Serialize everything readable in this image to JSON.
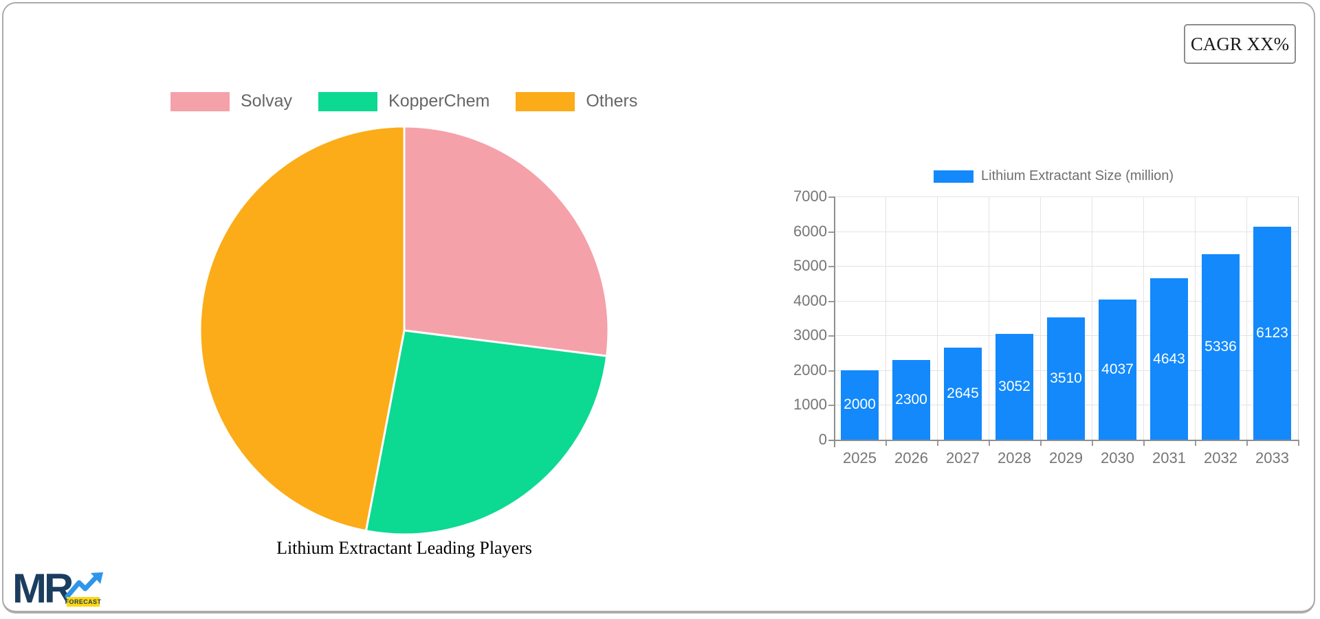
{
  "cagr": {
    "label": "CAGR XX%"
  },
  "logo": {
    "brand": "MR",
    "badge": "FORECAST"
  },
  "chart_data": [
    {
      "type": "pie",
      "title": "Lithium Extractant Leading Players",
      "labels": [
        "Solvay",
        "KopperChem",
        "Others"
      ],
      "values": [
        27,
        26,
        47
      ],
      "colors": [
        "#F5A1A9",
        "#0CD992",
        "#FBAC18"
      ],
      "legend_position": "top",
      "start_angle_deg": -90,
      "direction": "clockwise",
      "slice_border_color": "#FFFFFF"
    },
    {
      "type": "bar",
      "legend": "Lithium Extractant Size (million)",
      "legend_position": "top",
      "categories": [
        "2025",
        "2026",
        "2027",
        "2028",
        "2029",
        "2030",
        "2031",
        "2032",
        "2033"
      ],
      "values": [
        2000,
        2300,
        2645,
        3052,
        3510,
        4037,
        4643,
        5336,
        6123
      ],
      "bar_color": "#1389FB",
      "value_label_color": "#FFFFFF",
      "ylim": [
        0,
        7000
      ],
      "y_tick_step": 1000,
      "grid": true
    }
  ]
}
